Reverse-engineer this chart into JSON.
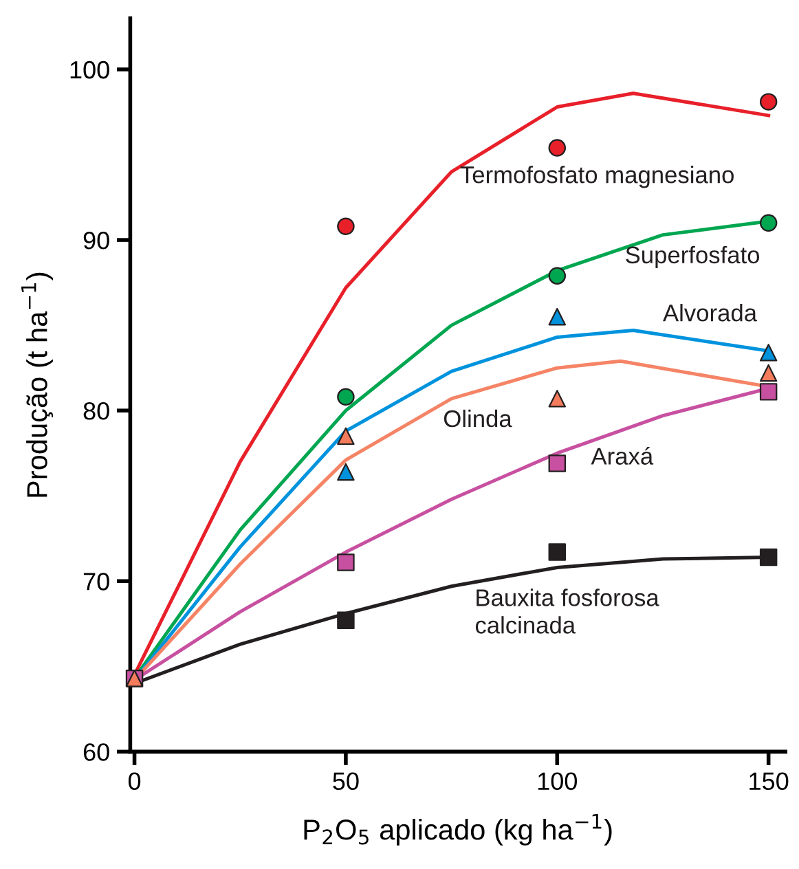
{
  "chart_data": {
    "type": "scatter",
    "xlabel": "P$_{2}$O$_{5}$ aplicado (kg ha$^{−1}$)",
    "ylabel": "Produção (t ha$^{−1}$)",
    "xlim": [
      -1,
      154
    ],
    "ylim": [
      60,
      103
    ],
    "xticks": [
      0,
      50,
      100,
      150
    ],
    "yticks": [
      60,
      70,
      80,
      90,
      100
    ],
    "grid": false,
    "legend": false,
    "series": [
      {
        "type": "line",
        "name": "Termofosfato magnesiano",
        "color": "#e8202a",
        "x": [
          0,
          25,
          50,
          75,
          100,
          118,
          150
        ],
        "values": [
          64.5,
          77,
          87.2,
          94,
          97.8,
          98.6,
          97.3
        ]
      },
      {
        "type": "line",
        "name": "Superfosfato",
        "color": "#00a650",
        "x": [
          0,
          25,
          50,
          75,
          100,
          125,
          150
        ],
        "values": [
          64.3,
          73,
          80,
          85,
          88.2,
          90.3,
          91.1
        ]
      },
      {
        "type": "line",
        "name": "Alvorada",
        "color": "#0093dd",
        "x": [
          0,
          25,
          50,
          75,
          100,
          118,
          150
        ],
        "values": [
          64.2,
          72,
          78.8,
          82.3,
          84.3,
          84.7,
          83.5
        ]
      },
      {
        "type": "line",
        "name": "Olinda",
        "color": "#f58466",
        "x": [
          0,
          25,
          50,
          75,
          100,
          115,
          150
        ],
        "values": [
          64.2,
          71,
          77.1,
          80.7,
          82.5,
          82.9,
          81.4
        ]
      },
      {
        "type": "line",
        "name": "Araxá",
        "color": "#c850a0",
        "x": [
          0,
          25,
          50,
          75,
          100,
          125,
          150
        ],
        "values": [
          64.2,
          68.2,
          71.7,
          74.8,
          77.5,
          79.7,
          81.3
        ]
      },
      {
        "type": "line",
        "name": "Bauxita fosforosa\ncalcinada",
        "color": "#231f20",
        "x": [
          0,
          25,
          50,
          75,
          100,
          125,
          150
        ],
        "values": [
          64,
          66.3,
          68.1,
          69.7,
          70.8,
          71.3,
          71.4
        ]
      },
      {
        "marker": "circle",
        "color": "#e8202a",
        "x": [
          50,
          100,
          150
        ],
        "values": [
          90.8,
          95.4,
          98.1
        ]
      },
      {
        "marker": "circle",
        "color": "#00a650",
        "x": [
          50,
          100,
          150
        ],
        "values": [
          80.8,
          87.9,
          91.0
        ]
      },
      {
        "marker": "triangle",
        "color": "#0093dd",
        "x": [
          50,
          100,
          150
        ],
        "values": [
          76.4,
          85.5,
          83.4
        ]
      },
      {
        "marker": "square",
        "color": "#c850a0",
        "x": [
          0,
          50,
          100,
          150
        ],
        "values": [
          64.3,
          71.1,
          76.9,
          81.1
        ]
      },
      {
        "marker": "triangle",
        "color": "#f47c5c",
        "x": [
          0,
          50,
          100,
          150
        ],
        "values": [
          64.3,
          78.5,
          80.7,
          82.2
        ]
      },
      {
        "marker": "square",
        "color": "#231f20",
        "x": [
          50,
          100,
          150
        ],
        "values": [
          67.7,
          71.7,
          71.4
        ]
      }
    ]
  }
}
